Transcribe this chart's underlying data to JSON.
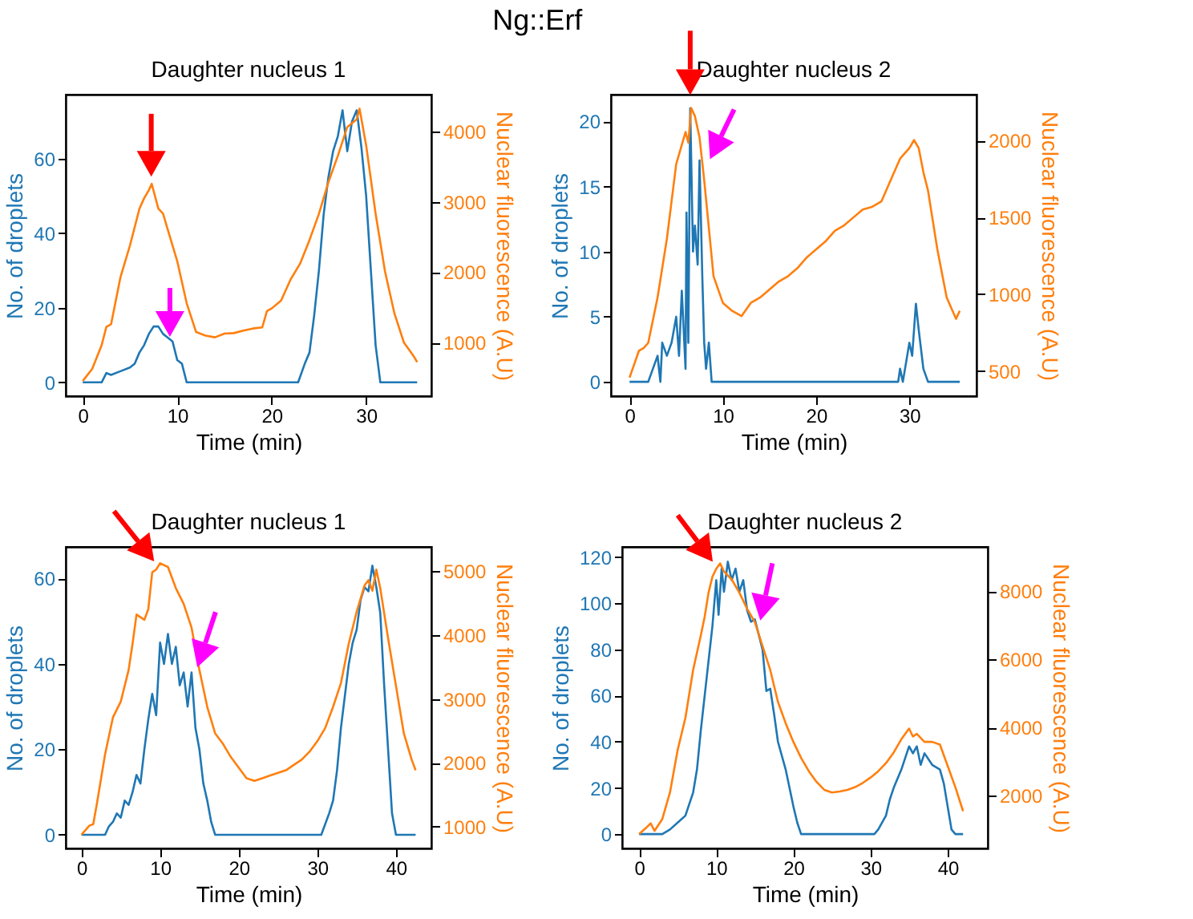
{
  "chart_data": [
    {
      "type": "line",
      "title": "Daughter nucleus 1",
      "annotations": [
        "Ng::Erf"
      ],
      "xlabel": "Time (min)",
      "ylabel": "No. of droplets",
      "y2label": "Nuclear fluorescence (A.U)",
      "xlim": [
        -1.8,
        36.9
      ],
      "xticks": [
        0,
        10,
        20,
        30
      ],
      "ylim": [
        -3.7,
        77.2
      ],
      "yticks": [
        0,
        20,
        40,
        60
      ],
      "y2lim": [
        240,
        4520
      ],
      "y2ticks": [
        1000,
        2000,
        3000,
        4000
      ],
      "grid": false,
      "series": [
        {
          "color": "#1f77b4",
          "x": [
            0,
            2,
            2.5,
            3,
            4,
            5,
            5.5,
            6,
            6.5,
            7,
            7.5,
            8,
            8.5,
            9,
            9.5,
            10,
            10.5,
            11,
            22.8,
            23.5,
            24,
            24.5,
            25,
            25.5,
            26,
            26.5,
            27,
            27.5,
            28,
            28.5,
            29,
            29.5,
            30,
            30.5,
            31,
            31.5,
            35.4
          ],
          "values": [
            0,
            0,
            2.5,
            2,
            3,
            4,
            5,
            8,
            10,
            13,
            15,
            15,
            13,
            12,
            11,
            6,
            5,
            0,
            0,
            5,
            8,
            18,
            30,
            45,
            55,
            62,
            66,
            73,
            62,
            70,
            73,
            63,
            50,
            30,
            10,
            0,
            0
          ]
        },
        {
          "color": "#ff7f0e",
          "axis": "y2",
          "x": [
            0,
            1,
            2,
            2.5,
            3,
            4,
            5,
            6,
            6.5,
            7,
            7.3,
            8,
            8.5,
            9,
            10,
            11,
            12,
            13,
            14,
            15,
            16,
            17,
            18,
            19,
            19.5,
            20,
            21,
            22,
            23,
            24,
            25,
            26,
            27,
            28,
            29,
            29.3,
            30,
            31,
            32,
            33,
            34,
            35,
            35.4
          ],
          "values": [
            455,
            627,
            963,
            1224,
            1261,
            1933,
            2380,
            2900,
            3050,
            3164,
            3254,
            2903,
            2830,
            2604,
            2157,
            1560,
            1150,
            1100,
            1075,
            1127,
            1135,
            1170,
            1200,
            1216,
            1448,
            1485,
            1597,
            1896,
            2119,
            2455,
            2828,
            3276,
            3650,
            4060,
            4170,
            4320,
            3800,
            2830,
            2007,
            1410,
            1000,
            813,
            724
          ]
        }
      ]
    },
    {
      "type": "line",
      "title": "Daughter nucleus 2",
      "xlabel": "Time (min)",
      "ylabel": "No. of droplets",
      "y2label": "Nuclear fluorescence (A.U)",
      "xlim": [
        -2.0,
        37.2
      ],
      "xticks": [
        0,
        10,
        20,
        30
      ],
      "ylim": [
        -1.1,
        22.05
      ],
      "yticks": [
        0,
        5,
        10,
        15,
        20
      ],
      "y2lim": [
        337,
        2299
      ],
      "y2ticks": [
        500,
        1000,
        1500,
        2000
      ],
      "grid": false,
      "series": [
        {
          "color": "#1f77b4",
          "x": [
            0,
            2,
            2.5,
            3,
            3.3,
            3.5,
            4,
            4.5,
            5,
            5.3,
            5.6,
            6,
            6.1,
            6.3,
            6.5,
            6.8,
            7,
            7.3,
            7.5,
            7.8,
            8,
            8.2,
            8.5,
            8.8,
            28.8,
            29,
            29.3,
            30,
            30.3,
            30.7,
            31,
            31.5,
            32,
            35.4
          ],
          "values": [
            0,
            0,
            1,
            2,
            0,
            3,
            2,
            3,
            5,
            2,
            7,
            1,
            13,
            3,
            21,
            10,
            12,
            9,
            17,
            8,
            3,
            1,
            3,
            0,
            0,
            1,
            0,
            3,
            2,
            6,
            4,
            1,
            0,
            0
          ]
        },
        {
          "color": "#ff7f0e",
          "axis": "y2",
          "x": [
            0,
            0.5,
            1,
            1.5,
            2,
            3,
            4,
            4.5,
            5,
            5.5,
            6,
            6.3,
            6.6,
            7,
            7.5,
            8,
            8.5,
            9,
            10,
            11,
            12,
            13,
            14,
            15,
            16,
            17,
            18,
            19,
            20,
            21,
            22,
            23,
            24,
            25,
            26,
            27,
            28,
            29,
            30,
            30.5,
            31,
            31.5,
            32,
            33,
            34,
            35,
            35.4
          ],
          "values": [
            458,
            545,
            632,
            649,
            684,
            979,
            1361,
            1604,
            1847,
            1951,
            2056,
            1986,
            2212,
            2160,
            2021,
            1743,
            1431,
            1118,
            944,
            892,
            858,
            944,
            979,
            1031,
            1083,
            1118,
            1170,
            1240,
            1292,
            1344,
            1413,
            1448,
            1500,
            1552,
            1569,
            1604,
            1743,
            1882,
            1951,
            2003,
            1951,
            1795,
            1674,
            1292,
            979,
            840,
            892
          ]
        }
      ]
    },
    {
      "type": "line",
      "title": "Daughter nucleus 1",
      "xlabel": "Time (min)",
      "ylabel": "No. of droplets",
      "y2label": "Nuclear fluorescence (A.U)",
      "xlim": [
        -2.0,
        44.5
      ],
      "xticks": [
        0,
        10,
        20,
        30,
        40
      ],
      "ylim": [
        -3.2,
        67.4
      ],
      "yticks": [
        0,
        20,
        40,
        60
      ],
      "y2lim": [
        661,
        5380
      ],
      "y2ticks": [
        1000,
        2000,
        3000,
        4000,
        5000
      ],
      "grid": false,
      "series": [
        {
          "color": "#1f77b4",
          "x": [
            0,
            3,
            3.5,
            4,
            4.5,
            5,
            5.5,
            6,
            6.5,
            7,
            7.5,
            8,
            8.5,
            9,
            9.5,
            10,
            10.5,
            11,
            11.5,
            12,
            12.5,
            13,
            13.5,
            14,
            14.5,
            15,
            15.5,
            16,
            16.5,
            17,
            30.5,
            31.5,
            32,
            32.5,
            33,
            34,
            34.5,
            35,
            35.5,
            36,
            36.5,
            37,
            37.5,
            38,
            38.5,
            39,
            39.5,
            40,
            42.5
          ],
          "values": [
            0,
            0,
            2,
            3,
            5,
            4,
            8,
            7,
            10,
            14,
            12,
            20,
            27,
            33,
            28,
            45,
            40,
            47,
            40,
            44,
            35,
            38,
            30,
            38,
            25,
            20,
            12,
            8,
            3,
            0,
            0,
            5,
            8,
            15,
            25,
            40,
            45,
            48,
            55,
            58,
            57,
            63,
            58,
            52,
            35,
            20,
            5,
            0,
            0
          ]
        },
        {
          "color": "#ff7f0e",
          "axis": "y2",
          "x": [
            0,
            1,
            1.5,
            2,
            3,
            4,
            5,
            6,
            6.5,
            7,
            8,
            8.5,
            9,
            9.5,
            10,
            11,
            12,
            13,
            14,
            15,
            16,
            17,
            18,
            19,
            20,
            21,
            22,
            23,
            24,
            25,
            26,
            27,
            28,
            29,
            30,
            31,
            32,
            33,
            34,
            35,
            36,
            36.5,
            37,
            37.5,
            38,
            39,
            40,
            41,
            42,
            42.5
          ],
          "values": [
            876,
            1017,
            1041,
            1388,
            2132,
            2711,
            2959,
            3455,
            3868,
            4322,
            4240,
            4405,
            4983,
            5025,
            5124,
            5066,
            4736,
            4488,
            4116,
            3455,
            2876,
            2463,
            2298,
            2091,
            1926,
            1760,
            1719,
            1760,
            1802,
            1843,
            1884,
            1967,
            2050,
            2174,
            2339,
            2545,
            2876,
            3248,
            3868,
            4364,
            4777,
            4860,
            4694,
            5025,
            4736,
            3950,
            3207,
            2463,
            2050,
            1884
          ]
        }
      ]
    },
    {
      "type": "line",
      "title": "Daughter nucleus 2",
      "xlabel": "Time (min)",
      "ylabel": "No. of droplets",
      "y2label": "Nuclear fluorescence (A.U)",
      "xlim": [
        -2.2,
        45.2
      ],
      "xticks": [
        0,
        10,
        20,
        30,
        40
      ],
      "ylim": [
        -6.2,
        124.4
      ],
      "yticks": [
        0,
        20,
        40,
        60,
        80,
        100,
        120
      ],
      "y2lim": [
        453,
        9297
      ],
      "y2ticks": [
        2000,
        4000,
        6000,
        8000
      ],
      "grid": false,
      "series": [
        {
          "color": "#1f77b4",
          "x": [
            0,
            3,
            4,
            5,
            6,
            7,
            7.5,
            8,
            8.5,
            9,
            9.5,
            10,
            10.3,
            10.7,
            11,
            11.5,
            12,
            12.5,
            13,
            13.5,
            14,
            14.5,
            15,
            16,
            16.5,
            17,
            17.5,
            18,
            19,
            20,
            20.5,
            21,
            30.5,
            31,
            32,
            32.5,
            33,
            34,
            34.5,
            35,
            35.5,
            36,
            36.5,
            37,
            38,
            39,
            39.5,
            40,
            40.5,
            41,
            42
          ],
          "values": [
            0,
            0,
            2,
            5,
            8,
            18,
            28,
            45,
            60,
            75,
            90,
            110,
            95,
            115,
            105,
            118,
            110,
            115,
            105,
            110,
            97,
            92,
            93,
            80,
            62,
            63,
            52,
            40,
            28,
            12,
            5,
            0,
            0,
            2,
            8,
            15,
            20,
            28,
            33,
            38,
            35,
            38,
            30,
            35,
            30,
            28,
            22,
            12,
            2,
            0,
            0
          ]
        },
        {
          "color": "#ff7f0e",
          "axis": "y2",
          "x": [
            0,
            1,
            1.5,
            2,
            3,
            4,
            5,
            6,
            7,
            8,
            8.5,
            9,
            9.5,
            10,
            10.5,
            11,
            12,
            13,
            14,
            15,
            16,
            17,
            18,
            19,
            20,
            21,
            22,
            23,
            24,
            25,
            26,
            27,
            28,
            29,
            30,
            31,
            32,
            33,
            34,
            35,
            35.5,
            36,
            37,
            38,
            39,
            40,
            41,
            42
          ],
          "values": [
            875,
            1078,
            1188,
            969,
            1313,
            2094,
            3344,
            4281,
            5688,
            6703,
            7250,
            7953,
            8422,
            8656,
            8813,
            8578,
            8344,
            7953,
            7484,
            7094,
            6391,
            5688,
            4750,
            4125,
            3578,
            3109,
            2719,
            2406,
            2172,
            2094,
            2125,
            2172,
            2250,
            2375,
            2531,
            2719,
            2953,
            3266,
            3656,
            3969,
            3734,
            3813,
            3578,
            3578,
            3500,
            2875,
            2250,
            1547
          ]
        }
      ]
    }
  ]
}
